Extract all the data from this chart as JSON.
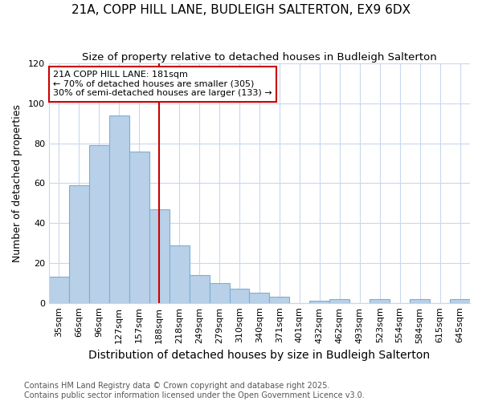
{
  "title": "21A, COPP HILL LANE, BUDLEIGH SALTERTON, EX9 6DX",
  "subtitle": "Size of property relative to detached houses in Budleigh Salterton",
  "xlabel": "Distribution of detached houses by size in Budleigh Salterton",
  "ylabel": "Number of detached properties",
  "categories": [
    "35sqm",
    "66sqm",
    "96sqm",
    "127sqm",
    "157sqm",
    "188sqm",
    "218sqm",
    "249sqm",
    "279sqm",
    "310sqm",
    "340sqm",
    "371sqm",
    "401sqm",
    "432sqm",
    "462sqm",
    "493sqm",
    "523sqm",
    "554sqm",
    "584sqm",
    "615sqm",
    "645sqm"
  ],
  "values": [
    13,
    59,
    79,
    94,
    76,
    47,
    29,
    14,
    10,
    7,
    5,
    3,
    0,
    1,
    2,
    0,
    2,
    0,
    2,
    0,
    2
  ],
  "bar_color": "#b8d0e8",
  "bar_edge_color": "#7bafd4",
  "fig_background": "#ffffff",
  "plot_background": "#ffffff",
  "grid_color": "#c8d8f0",
  "vline_x": 5,
  "vline_color": "#cc0000",
  "annotation_line1": "21A COPP HILL LANE: 181sqm",
  "annotation_line2": "← 70% of detached houses are smaller (305)",
  "annotation_line3": "30% of semi-detached houses are larger (133) →",
  "annotation_box_color": "white",
  "annotation_box_edgecolor": "#cc0000",
  "ylim": [
    0,
    120
  ],
  "yticks": [
    0,
    20,
    40,
    60,
    80,
    100,
    120
  ],
  "footer": "Contains HM Land Registry data © Crown copyright and database right 2025.\nContains public sector information licensed under the Open Government Licence v3.0.",
  "title_fontsize": 11,
  "subtitle_fontsize": 9.5,
  "xlabel_fontsize": 10,
  "ylabel_fontsize": 9,
  "tick_fontsize": 8,
  "footer_fontsize": 7
}
